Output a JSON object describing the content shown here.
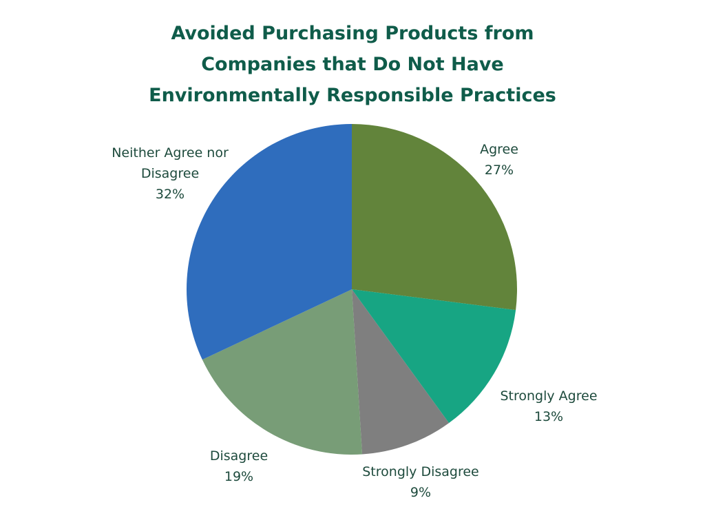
{
  "chart_data": {
    "type": "pie",
    "title": [
      "Avoided Purchasing Products from",
      "Companies that Do Not Have",
      "Environmentally Responsible Practices"
    ],
    "categories": [
      "Agree",
      "Strongly Agree",
      "Strongly Disagree",
      "Disagree",
      "Neither Agree nor Disagree"
    ],
    "values": [
      27,
      13,
      9,
      19,
      32
    ],
    "value_labels": [
      "27%",
      "13%",
      "9%",
      "19%",
      "32%"
    ],
    "colors": [
      "#62843b",
      "#17a583",
      "#7f7f7f",
      "#789d77",
      "#2f6dbd"
    ]
  }
}
